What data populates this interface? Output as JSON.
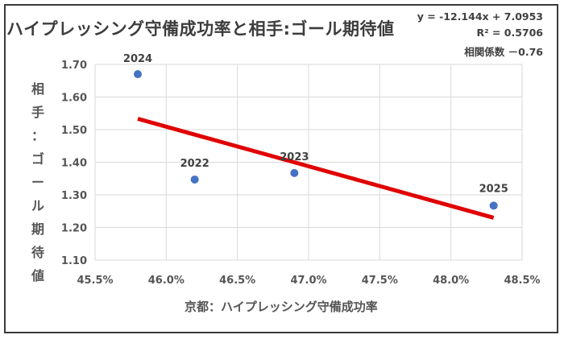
{
  "chart_data": {
    "type": "scatter",
    "title": "ハイプレッシング守備成功率と相手:ゴール期待値",
    "xlabel": "京都：ハイプレッシング守備成功率",
    "ylabel": "相手：ゴール期待値",
    "xlim": [
      45.5,
      48.5
    ],
    "ylim": [
      1.1,
      1.7
    ],
    "x_ticks": [
      "45.5%",
      "46.0%",
      "46.5%",
      "47.0%",
      "47.5%",
      "48.0%",
      "48.5%"
    ],
    "y_ticks": [
      "1.10",
      "1.20",
      "1.30",
      "1.40",
      "1.50",
      "1.60",
      "1.70"
    ],
    "grid": true,
    "points": [
      {
        "label": "2024",
        "x": 45.8,
        "y": 1.67
      },
      {
        "label": "2022",
        "x": 46.2,
        "y": 1.347
      },
      {
        "label": "2023",
        "x": 46.9,
        "y": 1.367
      },
      {
        "label": "2025",
        "x": 48.3,
        "y": 1.267
      }
    ],
    "trendline": {
      "x": [
        45.8,
        48.3
      ],
      "y": [
        1.5334,
        1.2298
      ],
      "color": "#e00000"
    },
    "point_color": "#4472c4",
    "annotations": {
      "equation": "y = -12.144x + 7.0953",
      "r2": "R² = 0.5706",
      "correlation": "相関係数 －0.76"
    }
  }
}
